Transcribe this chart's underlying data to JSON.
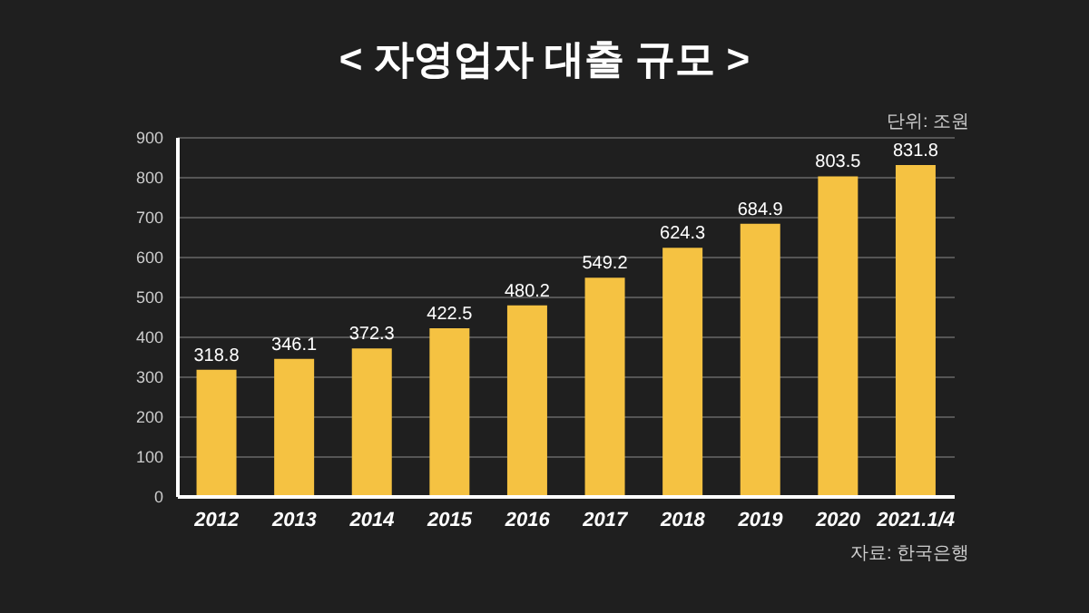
{
  "chart_data": {
    "type": "bar",
    "title": "< 자영업자 대출 규모 >",
    "categories": [
      "2012",
      "2013",
      "2014",
      "2015",
      "2016",
      "2017",
      "2018",
      "2019",
      "2020",
      "2021.1/4"
    ],
    "values": [
      318.8,
      346.1,
      372.3,
      422.5,
      480.2,
      549.2,
      624.3,
      684.9,
      803.5,
      831.8
    ],
    "color": "#f5c242",
    "ylim": [
      0,
      900
    ],
    "yticks": [
      0,
      100,
      200,
      300,
      400,
      500,
      600,
      700,
      800,
      900
    ],
    "grid": "y",
    "data_labels": true,
    "annotations": [
      "단위: 조원",
      "자료: 한국은행"
    ]
  }
}
